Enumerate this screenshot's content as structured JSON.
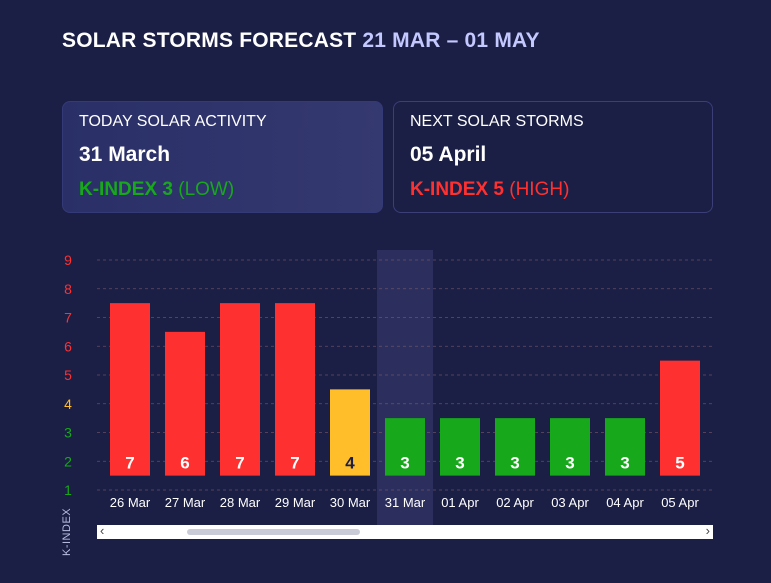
{
  "header": {
    "title": "SOLAR STORMS FORECAST",
    "range": "21 MAR – 01 MAY"
  },
  "today_card": {
    "label": "TODAY SOLAR ACTIVITY",
    "date": "31 March",
    "kindex": "K-INDEX 3",
    "level": "(LOW)"
  },
  "next_card": {
    "label": "NEXT SOLAR STORMS",
    "date": "05 April",
    "kindex": "K-INDEX 5",
    "level": "(HIGH)"
  },
  "colors": {
    "background": "#1b1f45",
    "low": "#17a81c",
    "moderate": "#ffbe2a",
    "high": "#ff3030",
    "range_text": "#c3c8ff",
    "highlight_column": "#2f3362"
  },
  "chart_data": {
    "type": "bar",
    "categories": [
      "26 Mar",
      "27 Mar",
      "28 Mar",
      "29 Mar",
      "30 Mar",
      "31 Mar",
      "01 Apr",
      "02 Apr",
      "03 Apr",
      "04 Apr",
      "05 Apr"
    ],
    "values": [
      7,
      6,
      7,
      7,
      4,
      3,
      3,
      3,
      3,
      3,
      5
    ],
    "bar_levels": [
      "high",
      "high",
      "high",
      "high",
      "moderate",
      "low",
      "low",
      "low",
      "low",
      "low",
      "high"
    ],
    "highlighted_category": "31 Mar",
    "ylabel": "K-INDEX",
    "ylim": [
      1,
      9
    ],
    "yticks": [
      1,
      2,
      3,
      4,
      5,
      6,
      7,
      8,
      9
    ],
    "ytick_levels": [
      "low",
      "low",
      "low",
      "moderate",
      "high",
      "high",
      "high",
      "high",
      "high"
    ],
    "grid": true,
    "scrollbar": {
      "left_arrow": "‹",
      "right_arrow": "›"
    }
  }
}
